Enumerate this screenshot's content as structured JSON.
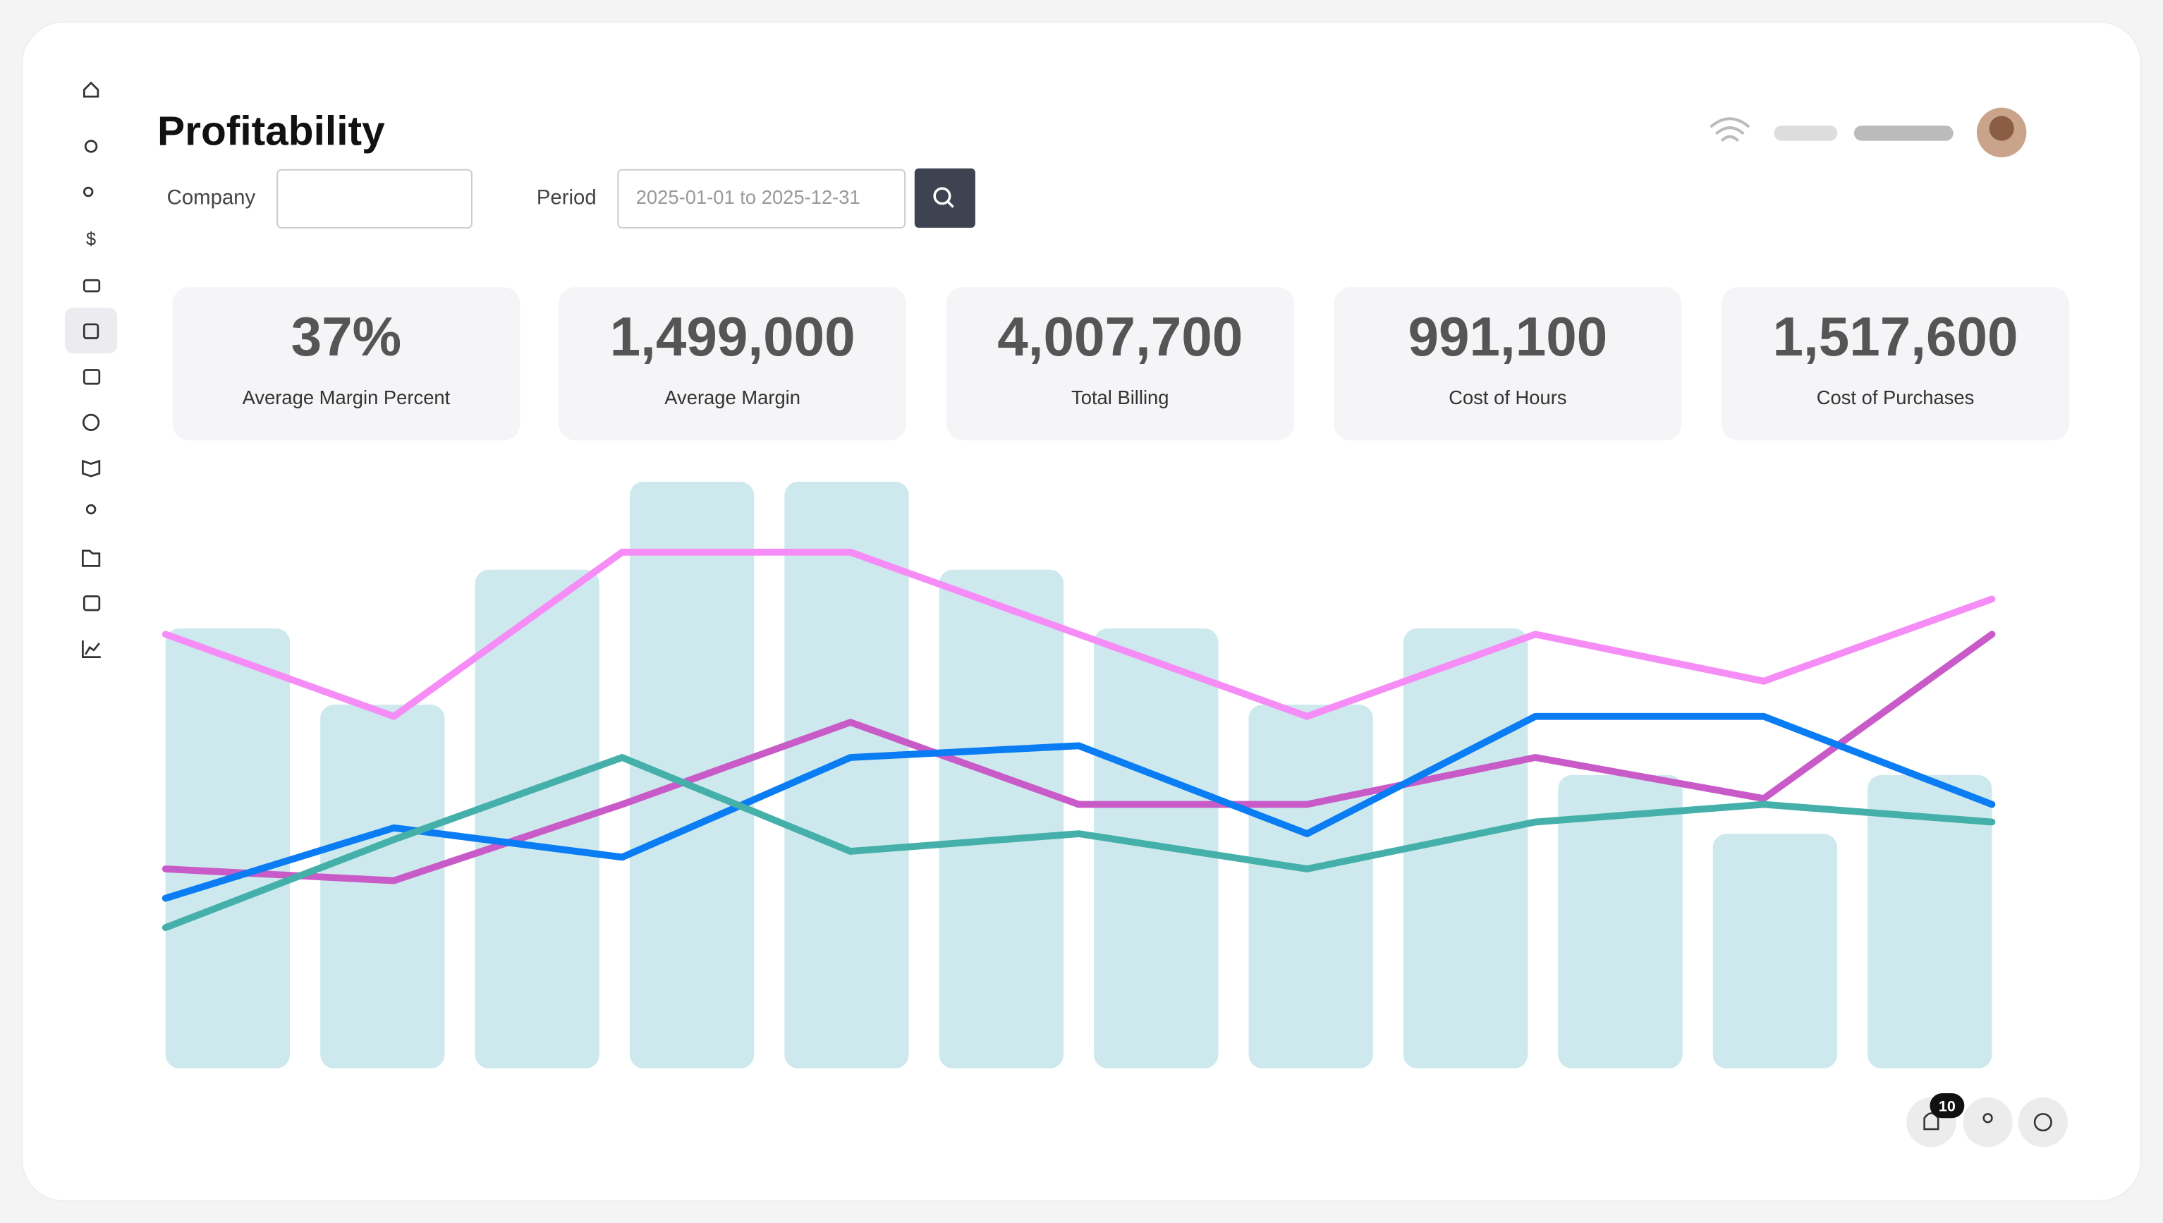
{
  "header": {
    "title": "Profitability"
  },
  "filters": {
    "company_label": "Company",
    "period_label": "Period",
    "period_placeholder": "2025-01-01 to 2025-12-31"
  },
  "kpis": [
    {
      "value": "37%",
      "label": "Average Margin Percent"
    },
    {
      "value": "1,499,000",
      "label": "Average Margin"
    },
    {
      "value": "4,007,700",
      "label": "Total Billing"
    },
    {
      "value": "991,100",
      "label": "Cost of Hours"
    },
    {
      "value": "1,517,600",
      "label": "Cost of Purchases"
    }
  ],
  "chart_data": {
    "type": "bar-line",
    "ylim": [
      0,
      100
    ],
    "bars": {
      "color": "#cde9ed",
      "values": [
        75,
        62,
        85,
        100,
        100,
        85,
        75,
        62,
        75,
        50,
        40,
        50
      ]
    },
    "lines": [
      {
        "color": "#f68cf6",
        "values": [
          74,
          60,
          88,
          88,
          74,
          60,
          74,
          66,
          80
        ]
      },
      {
        "color": "#c85bc8",
        "values": [
          34,
          32,
          45,
          59,
          45,
          45,
          53,
          46,
          74
        ]
      },
      {
        "color": "#0a7cf4",
        "values": [
          29,
          41,
          36,
          53,
          55,
          40,
          60,
          60,
          45
        ]
      },
      {
        "color": "#45b0aa",
        "values": [
          24,
          39,
          53,
          37,
          40,
          34,
          42,
          45,
          42
        ]
      }
    ]
  },
  "footer": {
    "notification_count": "10"
  }
}
